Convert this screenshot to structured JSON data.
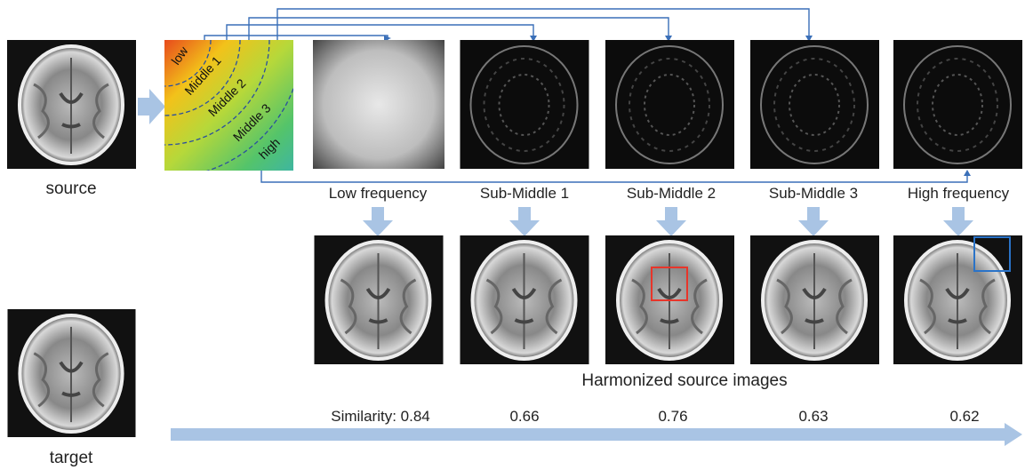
{
  "source": "source",
  "target": "target",
  "bands": [
    "low",
    "Middle 1",
    "Middle 2",
    "Middle 3",
    "high"
  ],
  "columns": [
    "Low frequency",
    "Sub-Middle 1",
    "Sub-Middle 2",
    "Sub-Middle 3",
    "High frequency"
  ],
  "harmonized_caption": "Harmonized source images",
  "similarity": {
    "label": "Similarity:",
    "values": [
      0.84,
      0.66,
      0.76,
      0.63,
      0.62
    ]
  }
}
